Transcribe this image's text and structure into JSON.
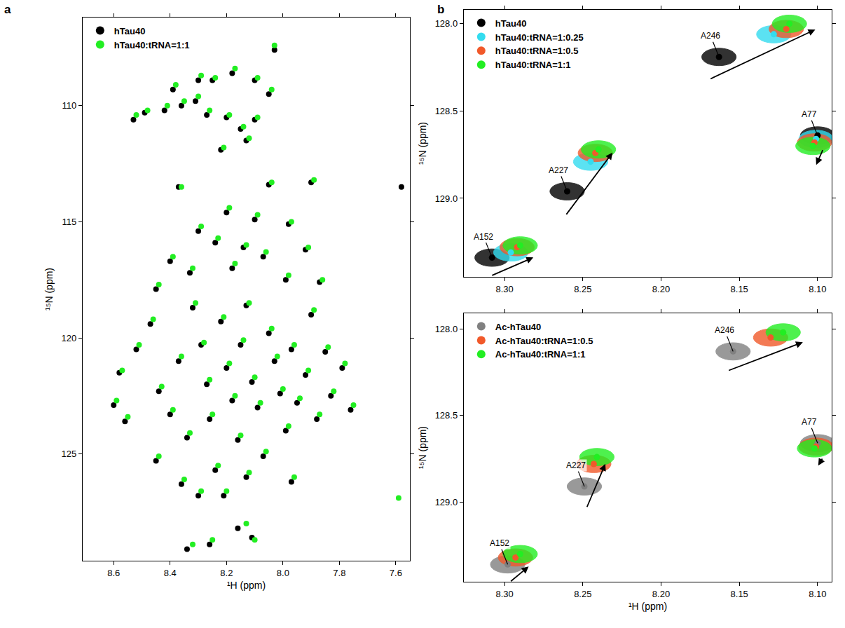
{
  "chart_data": [
    {
      "type": "scatter",
      "panel_label": "a",
      "x_label": "¹H (ppm)",
      "y_label": "¹⁵N (ppm)",
      "xlim": [
        8.71,
        7.55
      ],
      "ylim": [
        129.6,
        106.2
      ],
      "xticks": [
        8.6,
        8.4,
        8.2,
        {
          "value": 8,
          "label": "8.0"
        },
        7.8,
        7.6
      ],
      "yticks": [
        110,
        115,
        120,
        125
      ],
      "grid": false,
      "legend": "upper left",
      "series": [
        {
          "name": "hTau40",
          "color": "#000000",
          "marker": "circle",
          "x": [
            8.53,
            8.49,
            8.42,
            8.36,
            8.31,
            8.39,
            8.3,
            8.25,
            8.18,
            8.1,
            8.05,
            8.27,
            8.2,
            8.1,
            8.15,
            8.13,
            8.22,
            8.03,
            8.37,
            8.05,
            7.9,
            8.2,
            8.1,
            7.98,
            8.3,
            8.24,
            8.14,
            8.07,
            7.92,
            8.4,
            8.33,
            8.18,
            7.99,
            7.87,
            8.45,
            8.58,
            8.52,
            8.47,
            8.44,
            8.4,
            8.37,
            8.34,
            8.32,
            8.29,
            8.27,
            8.26,
            8.24,
            8.22,
            8.2,
            8.18,
            8.16,
            8.15,
            8.13,
            8.11,
            8.09,
            8.07,
            8.05,
            8.03,
            8.01,
            7.99,
            7.97,
            7.95,
            7.92,
            7.9,
            7.88,
            7.85,
            7.83,
            7.79,
            7.76,
            8.45,
            8.36,
            8.3,
            8.21,
            8.56,
            8.6,
            8.13,
            7.97,
            8.34,
            8.26,
            8.16,
            8.11,
            7.58
          ],
          "y": [
            110.6,
            110.3,
            110.2,
            110.0,
            109.8,
            109.3,
            108.9,
            108.9,
            108.6,
            108.9,
            109.5,
            110.4,
            110.5,
            110.6,
            111.0,
            111.5,
            111.9,
            107.6,
            113.5,
            113.4,
            113.3,
            114.6,
            114.9,
            115.1,
            115.4,
            115.9,
            116.1,
            116.5,
            116.2,
            116.7,
            117.2,
            117.0,
            117.5,
            117.6,
            117.9,
            121.5,
            120.5,
            119.4,
            122.3,
            123.3,
            121.0,
            124.3,
            118.7,
            120.3,
            122.0,
            123.5,
            125.7,
            119.3,
            121.3,
            122.7,
            124.4,
            120.3,
            118.6,
            121.9,
            123.0,
            125.1,
            119.8,
            121.0,
            122.4,
            124.0,
            120.5,
            122.8,
            121.6,
            119.0,
            123.5,
            120.6,
            122.5,
            121.3,
            123.1,
            125.3,
            126.3,
            126.8,
            126.8,
            123.6,
            122.9,
            126.0,
            126.2,
            129.1,
            128.9,
            128.2,
            128.6,
            113.5
          ]
        },
        {
          "name": "hTau40:tRNA=1:1",
          "color": "#22ee22",
          "marker": "circle",
          "x": [
            8.52,
            8.48,
            8.41,
            8.35,
            8.3,
            8.38,
            8.29,
            8.24,
            8.17,
            8.09,
            8.04,
            8.26,
            8.19,
            8.09,
            8.14,
            8.12,
            8.21,
            8.03,
            8.36,
            8.04,
            7.89,
            8.19,
            8.09,
            7.97,
            8.29,
            8.23,
            8.13,
            8.06,
            7.91,
            8.39,
            8.32,
            8.17,
            7.98,
            7.86,
            8.44,
            8.57,
            8.51,
            8.46,
            8.43,
            8.39,
            8.36,
            8.33,
            8.31,
            8.28,
            8.26,
            8.25,
            8.23,
            8.21,
            8.19,
            8.17,
            8.15,
            8.14,
            8.12,
            8.1,
            8.08,
            8.06,
            8.04,
            8.02,
            8.0,
            7.98,
            7.96,
            7.94,
            7.91,
            7.89,
            7.87,
            7.84,
            7.82,
            7.78,
            7.75,
            8.44,
            8.35,
            8.29,
            8.2,
            8.55,
            8.59,
            8.12,
            7.96,
            8.32,
            8.25,
            8.13,
            8.1,
            7.59
          ],
          "y": [
            110.4,
            110.2,
            110.0,
            109.8,
            109.6,
            109.1,
            108.7,
            108.8,
            108.4,
            108.8,
            109.3,
            110.2,
            110.4,
            110.5,
            110.9,
            111.4,
            111.8,
            107.4,
            113.5,
            113.3,
            113.2,
            114.4,
            114.7,
            115.0,
            115.2,
            115.7,
            116.0,
            116.3,
            116.1,
            116.5,
            117.0,
            116.8,
            117.3,
            117.5,
            117.7,
            121.4,
            120.3,
            119.2,
            122.1,
            123.1,
            120.8,
            124.1,
            118.5,
            120.2,
            121.8,
            123.3,
            125.5,
            119.1,
            121.1,
            122.5,
            124.2,
            120.1,
            118.5,
            121.7,
            122.8,
            124.9,
            119.6,
            120.8,
            122.2,
            123.8,
            120.3,
            122.6,
            121.4,
            118.8,
            123.3,
            120.4,
            122.3,
            121.1,
            122.9,
            125.1,
            126.1,
            126.6,
            126.6,
            123.4,
            122.7,
            125.8,
            126.0,
            128.9,
            128.7,
            128.0,
            128.7,
            126.9
          ]
        }
      ]
    },
    {
      "type": "scatter",
      "panel_label": "b",
      "y_label": "¹⁵N (ppm)",
      "xlim": [
        8.326,
        8.091
      ],
      "ylim": [
        129.45,
        127.92
      ],
      "xticks": [
        {
          "value": 8.3,
          "label": "8.30"
        },
        8.25,
        {
          "value": 8.2,
          "label": "8.20"
        },
        8.15,
        {
          "value": 8.1,
          "label": "8.10"
        }
      ],
      "yticks": [
        {
          "value": 128,
          "label": "128.0"
        },
        128.5,
        {
          "value": 129,
          "label": "129.0"
        }
      ],
      "grid": false,
      "legend": "upper left",
      "annotations": [
        {
          "text": "A246",
          "x": 8.163,
          "y": 128.19
        },
        {
          "text": "A227",
          "x": 8.26,
          "y": 128.96
        },
        {
          "text": "A152",
          "x": 8.308,
          "y": 129.34
        },
        {
          "text": "A77",
          "x": 8.1,
          "y": 128.64
        }
      ],
      "series": [
        {
          "name": "hTau40",
          "color": "#000000",
          "marker": "ellipse",
          "x": [
            8.163,
            8.26,
            8.308,
            8.1
          ],
          "y": [
            128.19,
            128.96,
            129.34,
            128.64
          ]
        },
        {
          "name": "hTau40:tRNA=1:0.25",
          "color": "#33dcef",
          "marker": "ellipse",
          "x": [
            8.128,
            8.245,
            8.296,
            8.101
          ],
          "y": [
            128.06,
            128.79,
            129.31,
            128.66
          ]
        },
        {
          "name": "hTau40:tRNA=1:0.5",
          "color": "#f1592a",
          "marker": "ellipse",
          "x": [
            8.12,
            8.242,
            8.292,
            8.102
          ],
          "y": [
            128.03,
            128.74,
            129.28,
            128.68
          ]
        },
        {
          "name": "hTau40:tRNA=1:1",
          "color": "#22ee22",
          "marker": "ellipse",
          "x": [
            8.118,
            8.24,
            8.29,
            8.103
          ],
          "y": [
            128.0,
            128.72,
            129.27,
            128.7
          ]
        }
      ]
    },
    {
      "type": "scatter",
      "x_label": "¹H (ppm)",
      "y_label": "¹⁵N (ppm)",
      "xlim": [
        8.326,
        8.091
      ],
      "ylim": [
        129.46,
        127.91
      ],
      "xticks": [
        {
          "value": 8.3,
          "label": "8.30"
        },
        8.25,
        {
          "value": 8.2,
          "label": "8.20"
        },
        8.15,
        {
          "value": 8.1,
          "label": "8.10"
        }
      ],
      "yticks": [
        {
          "value": 128,
          "label": "128.0"
        },
        128.5,
        {
          "value": 129,
          "label": "129.0"
        }
      ],
      "grid": false,
      "legend": "upper left",
      "annotations": [
        {
          "text": "A246",
          "x": 8.154,
          "y": 128.13
        },
        {
          "text": "A227",
          "x": 8.249,
          "y": 128.91
        },
        {
          "text": "A152",
          "x": 8.298,
          "y": 129.36
        },
        {
          "text": "A77",
          "x": 8.1,
          "y": 128.66
        }
      ],
      "series": [
        {
          "name": "Ac-hTau40",
          "color": "#808080",
          "marker": "ellipse",
          "x": [
            8.154,
            8.249,
            8.298,
            8.1
          ],
          "y": [
            128.13,
            128.91,
            129.36,
            128.66
          ]
        },
        {
          "name": "Ac-hTau40:tRNA=1:0.5",
          "color": "#f1592a",
          "marker": "ellipse",
          "x": [
            8.13,
            8.243,
            8.293,
            8.101
          ],
          "y": [
            128.05,
            128.78,
            129.32,
            128.68
          ]
        },
        {
          "name": "Ac-hTau40:tRNA=1:1",
          "color": "#22ee22",
          "marker": "ellipse",
          "x": [
            8.122,
            8.241,
            8.29,
            8.102
          ],
          "y": [
            128.02,
            128.74,
            129.3,
            128.69
          ]
        }
      ]
    }
  ]
}
